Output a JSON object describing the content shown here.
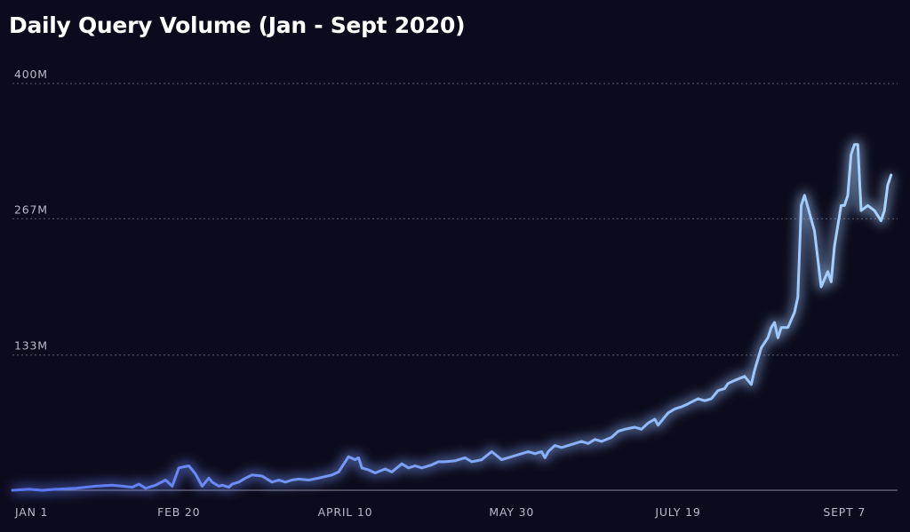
{
  "chart_data": {
    "type": "line",
    "title": "Daily Query Volume (Jan - Sept 2020)",
    "xlabel": "",
    "ylabel": "",
    "ylim": [
      0,
      400
    ],
    "y_unit": "M",
    "y_ticks": [
      {
        "value": 400,
        "label": "400M"
      },
      {
        "value": 267,
        "label": "267M"
      },
      {
        "value": 133,
        "label": "133M"
      }
    ],
    "x_ticks": [
      {
        "day": 1,
        "label": "JAN 1"
      },
      {
        "day": 51,
        "label": "FEB 20"
      },
      {
        "day": 101,
        "label": "APRIL 10"
      },
      {
        "day": 151,
        "label": "MAY 30"
      },
      {
        "day": 201,
        "label": "JULY 19"
      },
      {
        "day": 251,
        "label": "SEPT 7"
      }
    ],
    "grid": "horizontal-dotted",
    "legend": "none",
    "colors": {
      "background": "#0c0b1d",
      "line_start": "#5a74f0",
      "line_end": "#a9d4ff",
      "grid": "#5e5c74",
      "baseline": "#8a889c"
    },
    "series": [
      {
        "x": [
          1,
          6,
          10,
          14,
          20,
          26,
          31,
          34,
          37,
          39,
          41,
          44,
          47,
          49,
          51,
          54,
          56,
          58,
          60,
          61,
          63,
          64,
          66,
          67,
          69,
          71,
          73,
          76,
          79,
          81,
          83,
          85,
          87,
          90,
          93,
          97,
          99,
          101,
          102,
          104,
          105,
          106,
          108,
          110,
          113,
          115,
          118,
          120,
          122,
          124,
          127,
          129,
          131,
          134,
          137,
          139,
          142,
          145,
          148,
          151,
          154,
          156,
          158,
          160,
          161,
          162,
          164,
          166,
          168,
          170,
          172,
          174,
          176,
          178,
          181,
          183,
          185,
          188,
          190,
          192,
          194,
          195,
          197,
          198,
          200,
          202,
          204,
          207,
          209,
          211,
          213,
          215,
          216,
          218,
          221,
          223,
          224,
          226,
          228,
          229,
          230,
          231,
          232,
          234,
          236,
          237,
          238,
          239,
          242,
          244,
          246,
          247,
          248,
          250,
          251,
          252,
          253,
          254,
          255,
          256,
          258,
          260,
          262,
          263,
          264,
          265
        ],
        "y": [
          0,
          1,
          0,
          1,
          2,
          4,
          5,
          4,
          3,
          6,
          2,
          5,
          10,
          4,
          22,
          24,
          16,
          4,
          12,
          8,
          4,
          5,
          3,
          6,
          8,
          12,
          15,
          14,
          8,
          10,
          8,
          10,
          11,
          10,
          12,
          15,
          18,
          28,
          33,
          30,
          32,
          22,
          20,
          17,
          21,
          18,
          26,
          22,
          24,
          22,
          25,
          28,
          28,
          29,
          32,
          28,
          30,
          38,
          30,
          33,
          36,
          38,
          36,
          38,
          32,
          38,
          44,
          42,
          44,
          46,
          48,
          46,
          50,
          48,
          52,
          58,
          60,
          62,
          60,
          66,
          70,
          64,
          72,
          76,
          80,
          82,
          85,
          90,
          88,
          90,
          98,
          100,
          105,
          108,
          112,
          104,
          118,
          140,
          150,
          160,
          165,
          150,
          160,
          160,
          175,
          190,
          280,
          290,
          255,
          200,
          215,
          205,
          240,
          280,
          280,
          290,
          330,
          340,
          340,
          275,
          280,
          275,
          265,
          275,
          300,
          310
        ]
      }
    ]
  }
}
